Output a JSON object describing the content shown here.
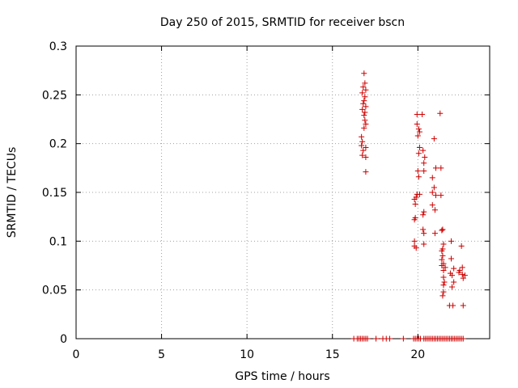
{
  "chart_data": {
    "type": "scatter",
    "title": "Day 250 of 2015, SRMTID for receiver bscn",
    "xlabel": "GPS time / hours",
    "ylabel": "SRMTID / TECUs",
    "xlim": [
      0,
      24.2
    ],
    "ylim": [
      0,
      0.3
    ],
    "x_ticks": [
      0,
      5,
      10,
      15,
      20
    ],
    "x_tick_labels": [
      "0",
      "5",
      "10",
      "15",
      "20"
    ],
    "y_ticks": [
      0,
      0.05,
      0.1,
      0.15,
      0.2,
      0.25,
      0.3
    ],
    "y_tick_labels": [
      "0",
      "0.05",
      "0.1",
      "0.15",
      "0.2",
      "0.25",
      "0.3"
    ],
    "grid": true,
    "marker": "+",
    "color": "#cc0000",
    "series": [
      {
        "name": "SRMTID",
        "points": [
          [
            16.85,
            0.272
          ],
          [
            16.9,
            0.262
          ],
          [
            16.8,
            0.258
          ],
          [
            16.95,
            0.255
          ],
          [
            16.75,
            0.252
          ],
          [
            16.9,
            0.248
          ],
          [
            16.85,
            0.244
          ],
          [
            16.8,
            0.241
          ],
          [
            16.95,
            0.238
          ],
          [
            16.75,
            0.235
          ],
          [
            16.9,
            0.232
          ],
          [
            16.85,
            0.229
          ],
          [
            16.9,
            0.224
          ],
          [
            16.95,
            0.22
          ],
          [
            16.85,
            0.216
          ],
          [
            16.7,
            0.207
          ],
          [
            16.75,
            0.202
          ],
          [
            16.7,
            0.198
          ],
          [
            16.95,
            0.196
          ],
          [
            16.8,
            0.193
          ],
          [
            16.75,
            0.188
          ],
          [
            16.95,
            0.186
          ],
          [
            16.95,
            0.171
          ],
          [
            19.95,
            0.23
          ],
          [
            20.25,
            0.23
          ],
          [
            19.95,
            0.22
          ],
          [
            20.05,
            0.215
          ],
          [
            20.1,
            0.212
          ],
          [
            20.0,
            0.208
          ],
          [
            20.1,
            0.196
          ],
          [
            20.3,
            0.193
          ],
          [
            20.05,
            0.19
          ],
          [
            20.4,
            0.186
          ],
          [
            20.35,
            0.18
          ],
          [
            20.0,
            0.172
          ],
          [
            20.35,
            0.172
          ],
          [
            20.05,
            0.166
          ],
          [
            19.95,
            0.148
          ],
          [
            20.1,
            0.148
          ],
          [
            19.9,
            0.145
          ],
          [
            19.8,
            0.143
          ],
          [
            19.85,
            0.138
          ],
          [
            20.35,
            0.13
          ],
          [
            20.3,
            0.127
          ],
          [
            19.85,
            0.124
          ],
          [
            19.8,
            0.122
          ],
          [
            20.3,
            0.112
          ],
          [
            20.35,
            0.108
          ],
          [
            19.8,
            0.1
          ],
          [
            20.35,
            0.097
          ],
          [
            19.8,
            0.095
          ],
          [
            19.9,
            0.093
          ],
          [
            20.95,
            0.205
          ],
          [
            21.3,
            0.231
          ],
          [
            21.05,
            0.175
          ],
          [
            21.35,
            0.175
          ],
          [
            20.85,
            0.165
          ],
          [
            20.95,
            0.155
          ],
          [
            20.85,
            0.15
          ],
          [
            21.05,
            0.147
          ],
          [
            21.35,
            0.147
          ],
          [
            20.85,
            0.137
          ],
          [
            21.0,
            0.132
          ],
          [
            21.45,
            0.112
          ],
          [
            21.4,
            0.111
          ],
          [
            21.0,
            0.108
          ],
          [
            21.5,
            0.097
          ],
          [
            21.45,
            0.092
          ],
          [
            21.4,
            0.09
          ],
          [
            21.45,
            0.085
          ],
          [
            21.4,
            0.081
          ],
          [
            21.95,
            0.1
          ],
          [
            22.55,
            0.095
          ],
          [
            21.95,
            0.082
          ],
          [
            21.5,
            0.077
          ],
          [
            21.4,
            0.075
          ],
          [
            21.6,
            0.073
          ],
          [
            21.5,
            0.07
          ],
          [
            22.1,
            0.072
          ],
          [
            22.6,
            0.073
          ],
          [
            22.45,
            0.07
          ],
          [
            22.4,
            0.068
          ],
          [
            21.9,
            0.067
          ],
          [
            22.0,
            0.065
          ],
          [
            22.6,
            0.066
          ],
          [
            22.75,
            0.065
          ],
          [
            21.5,
            0.063
          ],
          [
            21.55,
            0.058
          ],
          [
            22.65,
            0.062
          ],
          [
            22.1,
            0.058
          ],
          [
            21.5,
            0.055
          ],
          [
            22.0,
            0.053
          ],
          [
            21.5,
            0.048
          ],
          [
            21.45,
            0.044
          ],
          [
            21.85,
            0.034
          ],
          [
            22.05,
            0.034
          ],
          [
            22.65,
            0.034
          ],
          [
            16.25,
            0
          ],
          [
            16.45,
            0
          ],
          [
            16.55,
            0
          ],
          [
            16.65,
            0
          ],
          [
            16.75,
            0
          ],
          [
            16.85,
            0
          ],
          [
            16.95,
            0
          ],
          [
            17.05,
            0
          ],
          [
            17.55,
            0
          ],
          [
            17.95,
            0
          ],
          [
            18.15,
            0
          ],
          [
            18.35,
            0
          ],
          [
            19.15,
            0
          ],
          [
            19.75,
            0
          ],
          [
            19.85,
            0
          ],
          [
            19.95,
            0
          ],
          [
            20.05,
            0
          ],
          [
            20.15,
            0
          ],
          [
            20.35,
            0
          ],
          [
            20.45,
            0
          ],
          [
            20.55,
            0
          ],
          [
            20.65,
            0
          ],
          [
            20.75,
            0
          ],
          [
            20.85,
            0
          ],
          [
            20.95,
            0
          ],
          [
            21.05,
            0
          ],
          [
            21.15,
            0
          ],
          [
            21.25,
            0
          ],
          [
            21.35,
            0
          ],
          [
            21.45,
            0
          ],
          [
            21.55,
            0
          ],
          [
            21.65,
            0
          ],
          [
            21.75,
            0
          ],
          [
            21.85,
            0
          ],
          [
            21.95,
            0
          ],
          [
            22.05,
            0
          ],
          [
            22.15,
            0
          ],
          [
            22.25,
            0
          ],
          [
            22.35,
            0
          ],
          [
            22.45,
            0
          ],
          [
            22.55,
            0
          ],
          [
            22.65,
            0
          ]
        ]
      }
    ]
  }
}
